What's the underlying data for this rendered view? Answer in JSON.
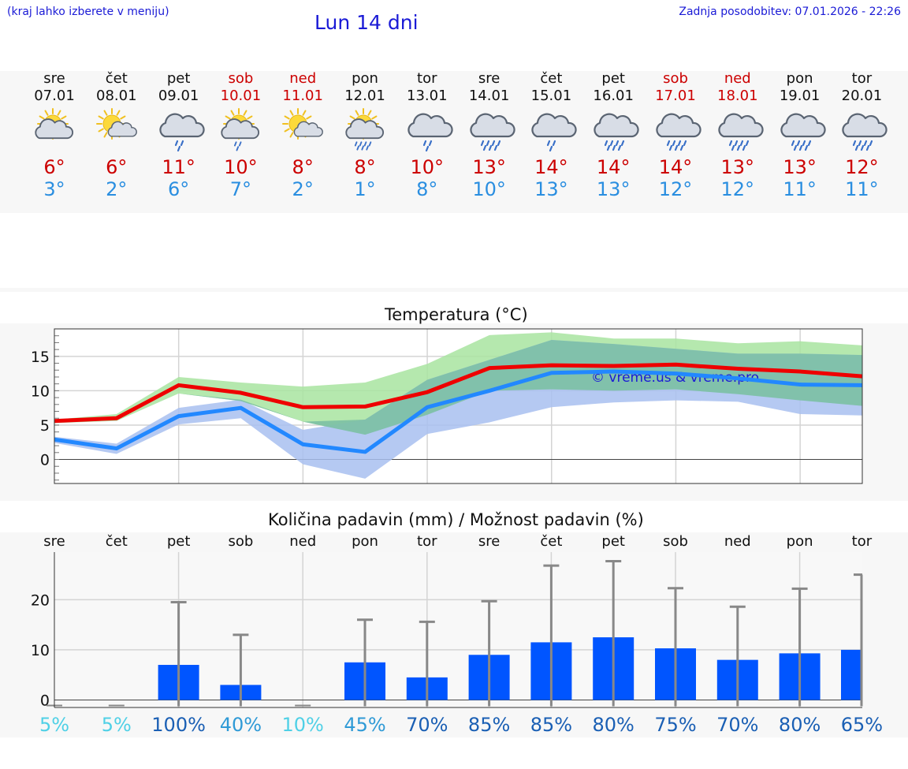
{
  "header": {
    "hint": "(kraj lahko izberete v meniju)",
    "title": "Lun 14 dni",
    "updated": "Zadnja posodobitev: 07.01.2026 - 22:26"
  },
  "days": [
    {
      "name": "sre",
      "date": "07.01",
      "weekend": false,
      "icon": "sun-cloud-icon",
      "tmax": "6°",
      "tmin": "3°"
    },
    {
      "name": "čet",
      "date": "08.01",
      "weekend": false,
      "icon": "sun-small-cloud-icon",
      "tmax": "6°",
      "tmin": "2°"
    },
    {
      "name": "pet",
      "date": "09.01",
      "weekend": false,
      "icon": "cloud-rain-icon",
      "tmax": "11°",
      "tmin": "6°"
    },
    {
      "name": "sob",
      "date": "10.01",
      "weekend": true,
      "icon": "sun-cloud-rain-icon",
      "tmax": "10°",
      "tmin": "7°"
    },
    {
      "name": "ned",
      "date": "11.01",
      "weekend": true,
      "icon": "sun-small-cloud-icon",
      "tmax": "8°",
      "tmin": "2°"
    },
    {
      "name": "pon",
      "date": "12.01",
      "weekend": false,
      "icon": "sun-cloud-heavy-rain-icon",
      "tmax": "8°",
      "tmin": "1°"
    },
    {
      "name": "tor",
      "date": "13.01",
      "weekend": false,
      "icon": "cloud-rain-icon",
      "tmax": "10°",
      "tmin": "8°"
    },
    {
      "name": "sre",
      "date": "14.01",
      "weekend": false,
      "icon": "cloud-heavy-rain-icon",
      "tmax": "13°",
      "tmin": "10°"
    },
    {
      "name": "čet",
      "date": "15.01",
      "weekend": false,
      "icon": "cloud-rain-icon",
      "tmax": "14°",
      "tmin": "13°"
    },
    {
      "name": "pet",
      "date": "16.01",
      "weekend": false,
      "icon": "cloud-heavy-rain-icon",
      "tmax": "14°",
      "tmin": "13°"
    },
    {
      "name": "sob",
      "date": "17.01",
      "weekend": true,
      "icon": "cloud-heavy-rain-icon",
      "tmax": "14°",
      "tmin": "12°"
    },
    {
      "name": "ned",
      "date": "18.01",
      "weekend": true,
      "icon": "cloud-heavy-rain-icon",
      "tmax": "13°",
      "tmin": "12°"
    },
    {
      "name": "pon",
      "date": "19.01",
      "weekend": false,
      "icon": "cloud-heavy-rain-icon",
      "tmax": "13°",
      "tmin": "11°"
    },
    {
      "name": "tor",
      "date": "20.01",
      "weekend": false,
      "icon": "cloud-heavy-rain-icon",
      "tmax": "12°",
      "tmin": "11°"
    }
  ],
  "colors": {
    "max_line": "#ee0000",
    "min_line": "#2288ff",
    "max_band": "#a8e4a0",
    "min_band": "#a8bff0",
    "overlap_band": "#7cc0a4",
    "bar": "#0055ff",
    "error_bar": "#888888"
  },
  "chart_data": [
    {
      "type": "line",
      "title": "Temperatura (°C)",
      "watermark": "© vreme.us & vreme.pro",
      "x": [
        0,
        1,
        2,
        3,
        4,
        5,
        6,
        7,
        8,
        9,
        10,
        11,
        12,
        13
      ],
      "yticks": [
        0,
        5,
        10,
        15
      ],
      "ylim": [
        -3.5,
        19
      ],
      "series": [
        {
          "name": "max",
          "values": [
            5.6,
            6.0,
            10.8,
            9.7,
            7.6,
            7.7,
            9.8,
            13.3,
            13.7,
            13.6,
            13.8,
            13.2,
            12.8,
            12.1
          ],
          "band_low": [
            5.3,
            5.6,
            9.6,
            8.5,
            5.5,
            3.6,
            6.5,
            10.0,
            10.2,
            10.0,
            10.2,
            9.5,
            8.6,
            7.8
          ],
          "band_high": [
            5.8,
            6.6,
            12.0,
            11.2,
            10.6,
            11.2,
            13.9,
            18.1,
            18.5,
            17.6,
            17.6,
            16.9,
            17.2,
            16.6
          ]
        },
        {
          "name": "min",
          "values": [
            2.9,
            1.6,
            6.3,
            7.5,
            2.2,
            1.1,
            7.6,
            10.0,
            12.6,
            12.8,
            12.5,
            11.8,
            10.9,
            10.8
          ],
          "band_low": [
            2.4,
            0.8,
            5.1,
            6.0,
            -0.7,
            -2.8,
            3.7,
            5.4,
            7.6,
            8.3,
            8.6,
            8.4,
            6.6,
            6.4
          ],
          "band_high": [
            3.3,
            2.3,
            7.5,
            8.7,
            4.3,
            5.8,
            11.6,
            14.5,
            17.4,
            16.8,
            16.1,
            15.4,
            15.4,
            15.2
          ]
        }
      ]
    },
    {
      "type": "bar",
      "title": "Količina padavin (mm) / Možnost padavin (%)",
      "categories": [
        "sre",
        "čet",
        "pet",
        "sob",
        "ned",
        "pon",
        "tor",
        "sre",
        "čet",
        "pet",
        "sob",
        "ned",
        "pon",
        "tor"
      ],
      "values": [
        0,
        0,
        7,
        3,
        0,
        7.5,
        4.5,
        9,
        11.5,
        12.5,
        10.3,
        8,
        9.3,
        10
      ],
      "error_high": [
        0,
        0,
        19.5,
        13,
        0,
        16,
        15.6,
        19.7,
        26.8,
        27.7,
        22.3,
        18.6,
        22.2,
        25
      ],
      "chance": [
        "5%",
        "5%",
        "100%",
        "40%",
        "10%",
        "45%",
        "70%",
        "85%",
        "85%",
        "80%",
        "75%",
        "70%",
        "80%",
        "65%"
      ],
      "yticks": [
        0,
        10,
        20
      ],
      "ylim": [
        -1.5,
        29.5
      ]
    }
  ]
}
